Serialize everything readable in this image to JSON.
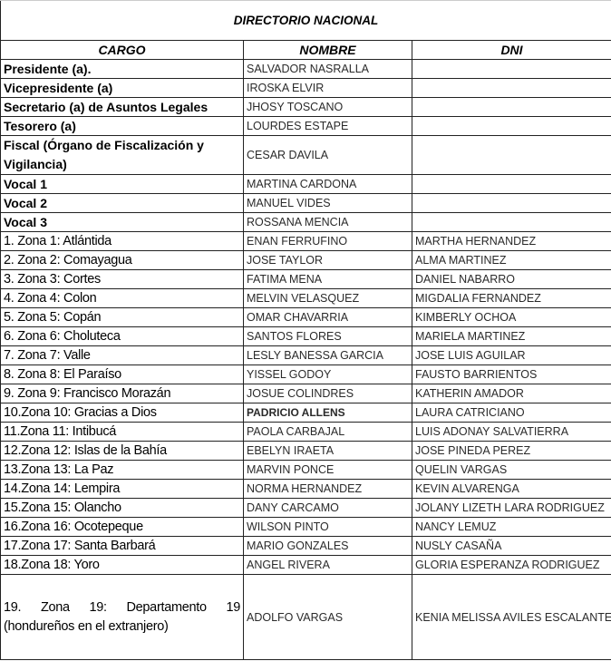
{
  "title": "DIRECTORIO NACIONAL",
  "columns": [
    "CARGO",
    "NOMBRE",
    "DNI"
  ],
  "rows": [
    {
      "cargo": "Presidente (a).",
      "nombre": "SALVADOR NASRALLA",
      "dni": ""
    },
    {
      "cargo": "Vicepresidente (a)",
      "nombre": "IROSKA ELVIR",
      "dni": ""
    },
    {
      "cargo": "Secretario (a) de Asuntos Legales",
      "nombre": "JHOSY TOSCANO",
      "dni": ""
    },
    {
      "cargo": "Tesorero (a)",
      "nombre": "LOURDES ESTAPE",
      "dni": ""
    },
    {
      "cargo": "Fiscal (Órgano de Fiscalización y Vigilancia)",
      "nombre": "CESAR DAVILA",
      "dni": ""
    },
    {
      "cargo": "Vocal 1",
      "nombre": "MARTINA CARDONA",
      "dni": ""
    },
    {
      "cargo": "Vocal 2",
      "nombre": "MANUEL VIDES",
      "dni": ""
    },
    {
      "cargo": "Vocal 3",
      "nombre": "ROSSANA MENCIA",
      "dni": ""
    },
    {
      "cargo": "1.  Zona 1: Atlántida",
      "nombre": "ENAN FERRUFINO",
      "dni": "MARTHA HERNANDEZ"
    },
    {
      "cargo": "2.  Zona 2: Comayagua",
      "nombre": "JOSE TAYLOR",
      "dni": "ALMA MARTINEZ"
    },
    {
      "cargo": "3.  Zona 3: Cortes",
      "nombre": "FATIMA MENA",
      "dni": "DANIEL NABARRO"
    },
    {
      "cargo": "4.  Zona 4: Colon",
      "nombre": "MELVIN VELASQUEZ",
      "dni": "MIGDALIA FERNANDEZ"
    },
    {
      "cargo": "5.  Zona 5: Copán",
      "nombre": "OMAR CHAVARRIA",
      "dni": "KIMBERLY OCHOA"
    },
    {
      "cargo": "6.  Zona 6: Choluteca",
      "nombre": "SANTOS FLORES",
      "dni": "MARIELA MARTINEZ"
    },
    {
      "cargo": "7.  Zona 7: Valle",
      "nombre": "LESLY BANESSA GARCIA",
      "dni": "JOSE LUIS AGUILAR"
    },
    {
      "cargo": "8.  Zona 8: El Paraíso",
      "nombre": "YISSEL GODOY",
      "dni": "FAUSTO BARRIENTOS"
    },
    {
      "cargo": "9.  Zona 9: Francisco Morazán",
      "nombre": "JOSUE COLINDRES",
      "dni": "KATHERIN AMADOR"
    },
    {
      "cargo": "10.Zona 10: Gracias a Dios",
      "nombre": "PADRICIO ALLENS",
      "dni": "LAURA CATRICIANO"
    },
    {
      "cargo": "11.Zona 11: Intibucá",
      "nombre": "PAOLA CARBAJAL",
      "dni": "LUIS ADONAY SALVATIERRA"
    },
    {
      "cargo": "12.Zona 12: Islas de la Bahía",
      "nombre": "EBELYN IRAETA",
      "dni": "JOSE PINEDA PEREZ"
    },
    {
      "cargo": "13.Zona 13: La Paz",
      "nombre": "MARVIN PONCE",
      "dni": "QUELIN VARGAS"
    },
    {
      "cargo": "14.Zona 14: Lempira",
      "nombre": "NORMA HERNANDEZ",
      "dni": "KEVIN ALVARENGA"
    },
    {
      "cargo": "15.Zona 15: Olancho",
      "nombre": "DANY CARCAMO",
      "dni": "JOLANY LIZETH LARA RODRIGUEZ"
    },
    {
      "cargo": "16.Zona 16: Ocotepeque",
      "nombre": "WILSON PINTO",
      "dni": "NANCY LEMUZ"
    },
    {
      "cargo": "17.Zona 17: Santa Barbará",
      "nombre": "MARIO GONZALES",
      "dni": "NUSLY CASAÑA"
    },
    {
      "cargo": "18.Zona 18: Yoro",
      "nombre": "ANGEL RIVERA",
      "dni": "GLORIA ESPERANZA RODRIGUEZ"
    },
    {
      "cargo": "19. Zona 19: Departamento 19 (hondureños en el extranjero)",
      "nombre": "ADOLFO VARGAS",
      "dni": "KENIA MELISSA AVILES ESCALANTE"
    }
  ]
}
